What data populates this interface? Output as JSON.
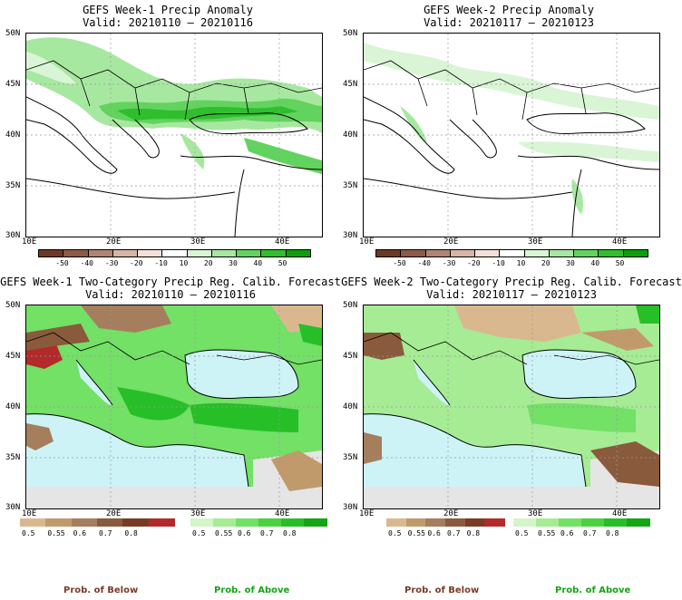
{
  "panels": [
    {
      "title": "GEFS Week-1 Precip Anomaly",
      "valid": "Valid: 20210110 – 20210116"
    },
    {
      "title": "GEFS Week-2 Precip Anomaly",
      "valid": "Valid: 20210117 – 20210123"
    },
    {
      "title": "GEFS Week-1 Two-Category Precip Reg. Calib. Forecast",
      "valid": "Valid: 20210110 – 20210116"
    },
    {
      "title": "GEFS Week-2 Two-Category Precip Reg. Calib. Forecast",
      "valid": "Valid: 20210117 – 20210123"
    }
  ],
  "lat_labels": [
    "50N",
    "45N",
    "40N",
    "35N",
    "30N"
  ],
  "lon_labels": [
    "10E",
    "20E",
    "30E",
    "40E"
  ],
  "anomaly_legend": {
    "labels": [
      "-50",
      "-40",
      "-30",
      "-20",
      "-10",
      "10",
      "20",
      "30",
      "40",
      "50"
    ],
    "colors": [
      "#6b3a26",
      "#8e5a45",
      "#b08473",
      "#d7b4a5",
      "#f3e0d8",
      "#ffffff",
      "#d9f5d5",
      "#a7e8a1",
      "#62d35e",
      "#2fbe2e",
      "#0a9f0b"
    ]
  },
  "prob_legend": {
    "labels": [
      "0.5",
      "0.55",
      "0.6",
      "0.7",
      "0.8"
    ],
    "below_colors": [
      "#d9b88f",
      "#c19a6b",
      "#a57e5d",
      "#8a5a3c",
      "#7a3b25",
      "#b22a2a"
    ],
    "above_colors": [
      "#d2f5c9",
      "#a6ec94",
      "#73e066",
      "#4cd140",
      "#27bf27",
      "#13a513"
    ]
  },
  "footer": {
    "below": "Prob. of Below",
    "above": "Prob. of Above"
  }
}
